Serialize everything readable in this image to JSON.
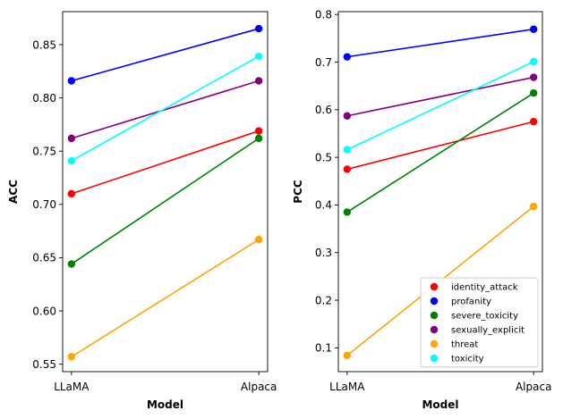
{
  "chart_data": [
    {
      "type": "line",
      "xlabel": "Model",
      "ylabel": "ACC",
      "categories": [
        "LLaMA",
        "Alpaca"
      ],
      "ylim": [
        0.543,
        0.881
      ],
      "yticks": [
        0.55,
        0.6,
        0.65,
        0.7,
        0.75,
        0.8,
        0.85
      ],
      "ytick_labels": [
        "0.55",
        "0.60",
        "0.65",
        "0.70",
        "0.75",
        "0.80",
        "0.85"
      ],
      "grid": false,
      "series": [
        {
          "name": "identity_attack",
          "color": "#ff0000",
          "values": [
            0.71,
            0.769
          ]
        },
        {
          "name": "profanity",
          "color": "#0000ff",
          "values": [
            0.816,
            0.865
          ]
        },
        {
          "name": "severe_toxicity",
          "color": "#008000",
          "values": [
            0.644,
            0.762
          ]
        },
        {
          "name": "sexually_explicit",
          "color": "#800080",
          "values": [
            0.762,
            0.816
          ]
        },
        {
          "name": "threat",
          "color": "#ffa500",
          "values": [
            0.557,
            0.667
          ]
        },
        {
          "name": "toxicity",
          "color": "#00ffff",
          "values": [
            0.741,
            0.839
          ]
        }
      ]
    },
    {
      "type": "line",
      "xlabel": "Model",
      "ylabel": "PCC",
      "categories": [
        "LLaMA",
        "Alpaca"
      ],
      "ylim": [
        0.05,
        0.806
      ],
      "yticks": [
        0.1,
        0.2,
        0.3,
        0.4,
        0.5,
        0.6,
        0.7,
        0.8
      ],
      "ytick_labels": [
        "0.1",
        "0.2",
        "0.3",
        "0.4",
        "0.5",
        "0.6",
        "0.7",
        "0.8"
      ],
      "grid": false,
      "legend": "lower-right",
      "series": [
        {
          "name": "identity_attack",
          "color": "#ff0000",
          "values": [
            0.475,
            0.575
          ]
        },
        {
          "name": "profanity",
          "color": "#0000ff",
          "values": [
            0.711,
            0.769
          ]
        },
        {
          "name": "severe_toxicity",
          "color": "#008000",
          "values": [
            0.385,
            0.635
          ]
        },
        {
          "name": "sexually_explicit",
          "color": "#800080",
          "values": [
            0.587,
            0.668
          ]
        },
        {
          "name": "threat",
          "color": "#ffa500",
          "values": [
            0.084,
            0.397
          ]
        },
        {
          "name": "toxicity",
          "color": "#00ffff",
          "values": [
            0.516,
            0.701
          ]
        }
      ]
    }
  ]
}
